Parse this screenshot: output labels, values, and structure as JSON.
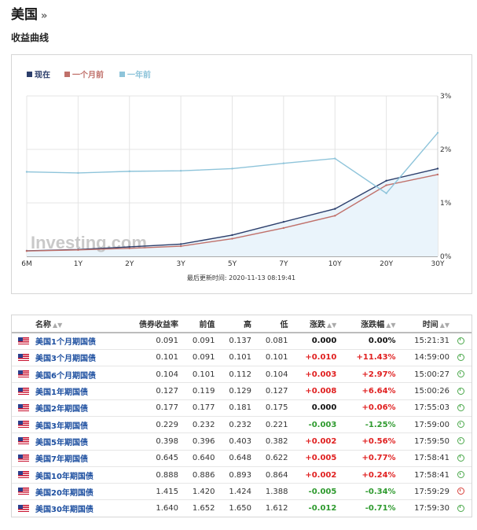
{
  "page": {
    "title": "美国",
    "title_arrow": "»",
    "section_title": "收益曲线"
  },
  "chart_data": {
    "type": "line",
    "categories": [
      "6M",
      "1Y",
      "2Y",
      "3Y",
      "5Y",
      "7Y",
      "10Y",
      "20Y",
      "30Y"
    ],
    "series": [
      {
        "name": "现在",
        "color": "#2c3e6b",
        "values": [
          0.104,
          0.127,
          0.177,
          0.229,
          0.398,
          0.645,
          0.888,
          1.415,
          1.64
        ]
      },
      {
        "name": "一个月前",
        "color": "#c0706a",
        "values": [
          0.1,
          0.12,
          0.15,
          0.19,
          0.33,
          0.53,
          0.76,
          1.33,
          1.53
        ]
      },
      {
        "name": "一年前",
        "color": "#8ec4da",
        "values": [
          1.58,
          1.56,
          1.59,
          1.6,
          1.64,
          1.74,
          1.83,
          1.18,
          2.31
        ]
      }
    ],
    "area_series": "现在",
    "y_ticks": [
      "0%",
      "1%",
      "2%",
      "3%"
    ],
    "ylim": [
      0,
      3
    ],
    "y_axis_position": "right",
    "legend_placement": "top-left",
    "watermark": "Investing.com",
    "footnote": "最后更新时间: 2020-11-13 08:19:41"
  },
  "table": {
    "headers": {
      "name": "名称",
      "yield": "债券收益率",
      "prev": "前值",
      "high": "高",
      "low": "低",
      "change": "涨跌",
      "change_pct": "涨跌幅",
      "time": "时间"
    },
    "sort_icon": "sort-icon",
    "rows": [
      {
        "name": "美国1个月期国债",
        "yield": "0.091",
        "prev": "0.091",
        "high": "0.137",
        "low": "0.081",
        "change": "0.000",
        "change_pct": "0.00%",
        "time": "15:21:31",
        "dir": "flat",
        "pct_dir": "flat",
        "clock": "green"
      },
      {
        "name": "美国3个月期国债",
        "yield": "0.101",
        "prev": "0.091",
        "high": "0.101",
        "low": "0.101",
        "change": "+0.010",
        "change_pct": "+11.43%",
        "time": "14:59:00",
        "dir": "pos",
        "pct_dir": "pos",
        "clock": "green"
      },
      {
        "name": "美国6个月期国债",
        "yield": "0.104",
        "prev": "0.101",
        "high": "0.112",
        "low": "0.104",
        "change": "+0.003",
        "change_pct": "+2.97%",
        "time": "15:00:27",
        "dir": "pos",
        "pct_dir": "pos",
        "clock": "green"
      },
      {
        "name": "美国1年期国债",
        "yield": "0.127",
        "prev": "0.119",
        "high": "0.129",
        "low": "0.127",
        "change": "+0.008",
        "change_pct": "+6.64%",
        "time": "15:00:26",
        "dir": "pos",
        "pct_dir": "pos",
        "clock": "green"
      },
      {
        "name": "美国2年期国债",
        "yield": "0.177",
        "prev": "0.177",
        "high": "0.181",
        "low": "0.175",
        "change": "0.000",
        "change_pct": "+0.06%",
        "time": "17:55:03",
        "dir": "flat",
        "pct_dir": "pos",
        "clock": "green"
      },
      {
        "name": "美国3年期国债",
        "yield": "0.229",
        "prev": "0.232",
        "high": "0.232",
        "low": "0.221",
        "change": "-0.003",
        "change_pct": "-1.25%",
        "time": "17:59:00",
        "dir": "neg",
        "pct_dir": "neg",
        "clock": "green"
      },
      {
        "name": "美国5年期国债",
        "yield": "0.398",
        "prev": "0.396",
        "high": "0.403",
        "low": "0.382",
        "change": "+0.002",
        "change_pct": "+0.56%",
        "time": "17:59:50",
        "dir": "pos",
        "pct_dir": "pos",
        "clock": "green"
      },
      {
        "name": "美国7年期国债",
        "yield": "0.645",
        "prev": "0.640",
        "high": "0.648",
        "low": "0.622",
        "change": "+0.005",
        "change_pct": "+0.77%",
        "time": "17:58:41",
        "dir": "pos",
        "pct_dir": "pos",
        "clock": "green"
      },
      {
        "name": "美国10年期国债",
        "yield": "0.888",
        "prev": "0.886",
        "high": "0.893",
        "low": "0.864",
        "change": "+0.002",
        "change_pct": "+0.24%",
        "time": "17:58:41",
        "dir": "pos",
        "pct_dir": "pos",
        "clock": "green"
      },
      {
        "name": "美国20年期国债",
        "yield": "1.415",
        "prev": "1.420",
        "high": "1.424",
        "low": "1.388",
        "change": "-0.005",
        "change_pct": "-0.34%",
        "time": "17:59:29",
        "dir": "neg",
        "pct_dir": "neg",
        "clock": "red"
      },
      {
        "name": "美国30年期国债",
        "yield": "1.640",
        "prev": "1.652",
        "high": "1.650",
        "low": "1.612",
        "change": "-0.012",
        "change_pct": "-0.71%",
        "time": "17:59:30",
        "dir": "neg",
        "pct_dir": "neg",
        "clock": "green"
      }
    ]
  }
}
